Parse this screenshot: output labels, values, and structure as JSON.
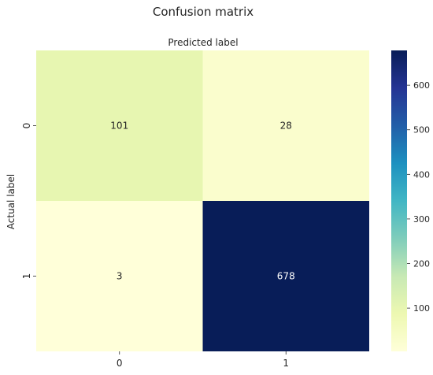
{
  "chart_data": {
    "type": "heatmap",
    "title": "Confusion matrix",
    "xlabel": "Predicted label",
    "ylabel": "Actual label",
    "x_categories": [
      "0",
      "1"
    ],
    "y_categories": [
      "0",
      "1"
    ],
    "values": [
      [
        101,
        28
      ],
      [
        3,
        678
      ]
    ],
    "colormap": "YlGnBu",
    "colorbar": {
      "ticks": [
        "100",
        "200",
        "300",
        "400",
        "500",
        "600"
      ],
      "tick_values": [
        100,
        200,
        300,
        400,
        500,
        600
      ],
      "range": [
        3,
        678
      ]
    },
    "xaxis_position": "top-label-bottom-ticks"
  }
}
